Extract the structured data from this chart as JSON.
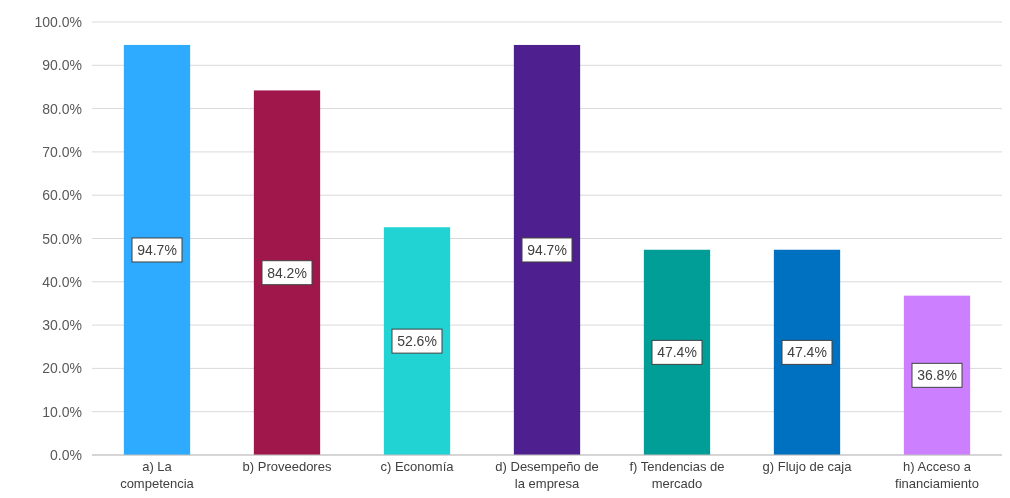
{
  "chart_data": {
    "type": "bar",
    "categories": [
      "a) La competencia",
      "b) Proveedores",
      "c) Economía",
      "d) Desempeño de la empresa",
      "f) Tendencias de mercado",
      "g) Flujo de caja",
      "h) Acceso a financiamiento"
    ],
    "values": [
      94.7,
      84.2,
      52.6,
      94.7,
      47.4,
      47.4,
      36.8
    ],
    "colors": [
      "#2eaaff",
      "#a0174b",
      "#22d3d3",
      "#4e208f",
      "#009e96",
      "#0070c0",
      "#cc80ff"
    ],
    "value_labels": [
      "94.7%",
      "84.2%",
      "52.6%",
      "94.7%",
      "47.4%",
      "47.4%",
      "36.8%"
    ],
    "ylim": [
      0,
      100
    ],
    "yticks": [
      {
        "value": 0,
        "label": "0.0%"
      },
      {
        "value": 10,
        "label": "10.0%"
      },
      {
        "value": 20,
        "label": "20.0%"
      },
      {
        "value": 30,
        "label": "30.0%"
      },
      {
        "value": 40,
        "label": "40.0%"
      },
      {
        "value": 50,
        "label": "50.0%"
      },
      {
        "value": 60,
        "label": "60.0%"
      },
      {
        "value": 70,
        "label": "70.0%"
      },
      {
        "value": 80,
        "label": "80.0%"
      },
      {
        "value": 90,
        "label": "90.0%"
      },
      {
        "value": 100,
        "label": "100.0%"
      }
    ],
    "grid": "y"
  }
}
